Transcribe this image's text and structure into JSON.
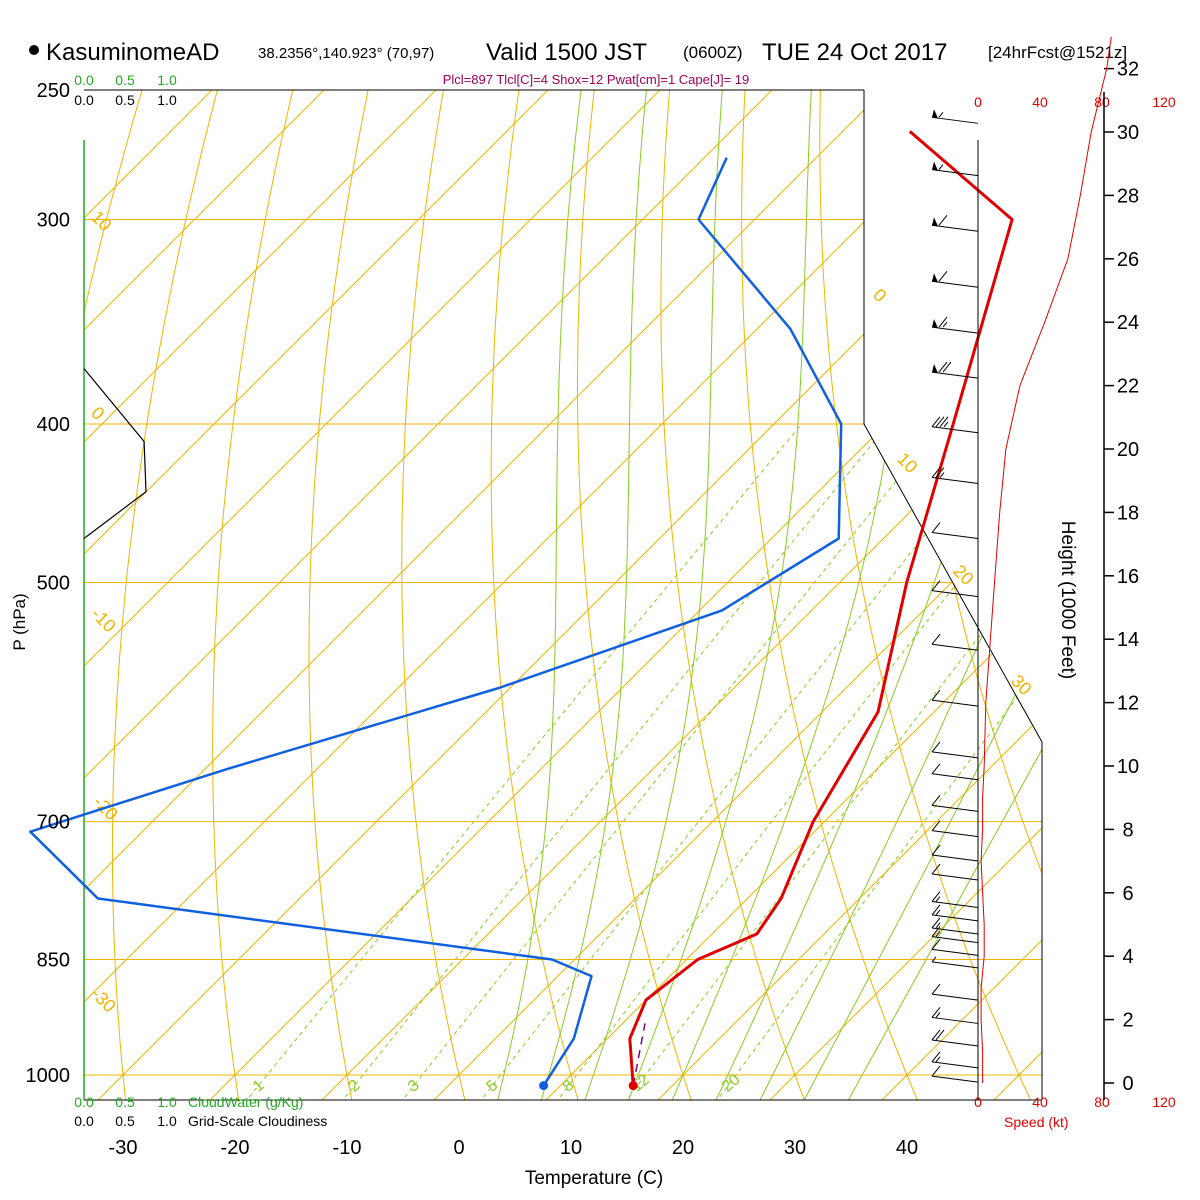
{
  "header": {
    "station": "KasuminomeAD",
    "coords": "38.2356°,140.923° (70,97)",
    "valid": "Valid 1500 JST",
    "z": "(0600Z)",
    "date": "TUE 24 Oct 2017",
    "fcst": "[24hrFcst@1521z]",
    "indices": "Plcl=897 Tlcl[C]=4 Shox=12 Pwat[cm]=1 Cape[J]= 19"
  },
  "colors": {
    "temp": "#e00000",
    "dew": "#1060e0",
    "isotherm": "#f0b400",
    "dry_adiabat": "#f0b400",
    "moist_adiabat": "#88cc22",
    "mixing": "#88cc22",
    "cloud": "#000000",
    "cloudwater": "#22aa22",
    "indices": "#a0005a",
    "wind_speed": "#e00000"
  },
  "chart_data": {
    "type": "line",
    "title": "",
    "xlabel": "Temperature (C)",
    "ylabel": "P (hPa)",
    "xlim": [
      -34,
      36
    ],
    "x_ticks": [
      "-30",
      "-20",
      "-10",
      "0",
      "10",
      "20",
      "30",
      "40"
    ],
    "y_ticks": [
      "250",
      "300",
      "400",
      "500",
      "700",
      "850",
      "1000"
    ],
    "y_axis_scale": "log-pressure",
    "skew": "45-degree skew-T",
    "isotherm_labels": [
      "10",
      "0",
      "-10",
      "-20",
      "-30",
      "0",
      "10",
      "20",
      "30"
    ],
    "mixing_ratio_labels": [
      "1",
      "2",
      "3",
      "5",
      "8",
      "12",
      "20"
    ],
    "series": [
      {
        "name": "temperature",
        "points": [
          [
            16.5,
            1015
          ],
          [
            12,
            950
          ],
          [
            10,
            900
          ],
          [
            11,
            850
          ],
          [
            14,
            820
          ],
          [
            13,
            780
          ],
          [
            9,
            700
          ],
          [
            5,
            600
          ],
          [
            -4,
            500
          ],
          [
            -14,
            400
          ],
          [
            -27,
            300
          ],
          [
            -44,
            265
          ]
        ]
      },
      {
        "name": "dewpoint",
        "points": [
          [
            8.5,
            1015
          ],
          [
            7,
            950
          ],
          [
            3,
            870
          ],
          [
            -2,
            850
          ],
          [
            -48,
            780
          ],
          [
            -60,
            710
          ],
          [
            -48,
            650
          ],
          [
            -31,
            580
          ],
          [
            -18,
            520
          ],
          [
            -14,
            470
          ],
          [
            -24,
            400
          ],
          [
            -37,
            350
          ],
          [
            -55,
            300
          ],
          [
            -58,
            275
          ]
        ]
      },
      {
        "name": "parcel",
        "points": [
          [
            16.5,
            1015
          ],
          [
            12,
            930
          ]
        ]
      }
    ],
    "cloud_axis": {
      "top_labels": [
        "0.0",
        "0.5",
        "1.0"
      ],
      "bottom_labels": [
        "0.0",
        "0.5",
        "1.0"
      ],
      "cloudwater_label": "CloudWater (g/Kg)",
      "cloudiness_label": "Grid-Scale Cloudiness"
    },
    "wind": {
      "speed_ticks": [
        "0",
        "40",
        "80",
        "120"
      ],
      "speed_label": "Speed (kt)",
      "barb_pressures": [
        262,
        282,
        305,
        330,
        352,
        375,
        405,
        435,
        470,
        510,
        550,
        595,
        640,
        660,
        690,
        715,
        740,
        760,
        790,
        805,
        820,
        830,
        845,
        860,
        900,
        930,
        960,
        990,
        1010
      ],
      "barb_speeds": [
        55,
        55,
        60,
        60,
        65,
        70,
        35,
        25,
        10,
        10,
        10,
        10,
        10,
        10,
        10,
        10,
        10,
        10,
        15,
        15,
        15,
        15,
        10,
        5,
        10,
        15,
        20,
        15,
        10
      ],
      "profile_height_kft": [
        0,
        1,
        2,
        3,
        4,
        5,
        6,
        7,
        8,
        9,
        10,
        12,
        14,
        16,
        18,
        20,
        22,
        24,
        26,
        28,
        30,
        32,
        33
      ],
      "profile_speed_kt": [
        3,
        3,
        2,
        2,
        4,
        4,
        3,
        2,
        3,
        3,
        4,
        5,
        8,
        11,
        14,
        18,
        27,
        43,
        58,
        66,
        73,
        83,
        86
      ]
    },
    "height_axis": {
      "label": "Height (1000 Feet)",
      "ticks": [
        "0",
        "2",
        "4",
        "6",
        "8",
        "10",
        "12",
        "14",
        "16",
        "18",
        "20",
        "22",
        "24",
        "26",
        "28",
        "30",
        "32"
      ]
    }
  }
}
